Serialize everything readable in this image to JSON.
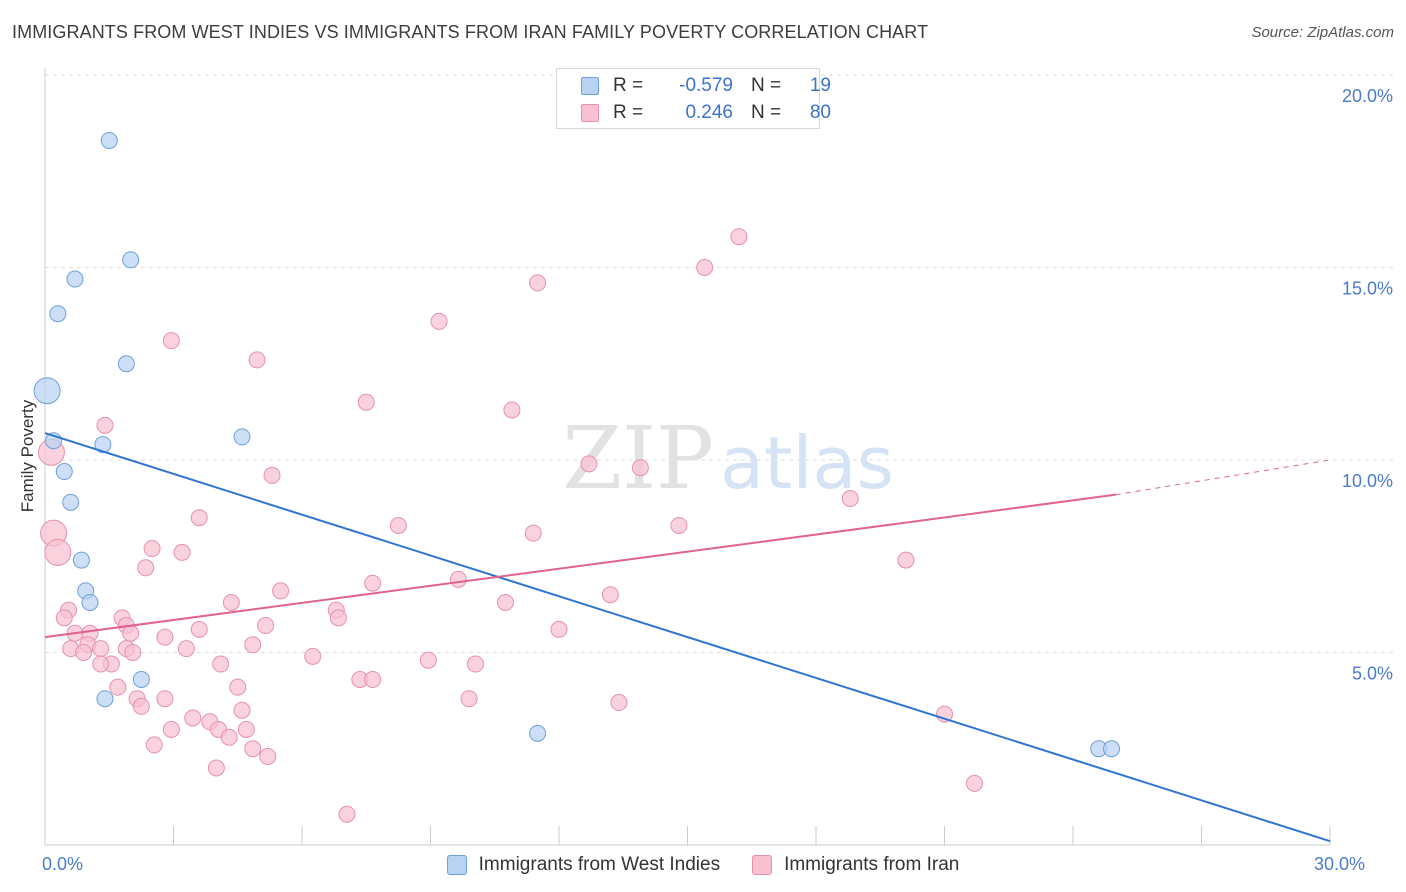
{
  "header": {
    "title": "IMMIGRANTS FROM WEST INDIES VS IMMIGRANTS FROM IRAN FAMILY POVERTY CORRELATION CHART",
    "source": "Source: ZipAtlas.com"
  },
  "watermark": {
    "zip": "ZIP",
    "atlas": "atlas"
  },
  "legend": {
    "rows": [
      {
        "r_label": "R =",
        "r_value": "-0.579",
        "n_label": "N =",
        "n_value": "19"
      },
      {
        "r_label": "R =",
        "r_value": "0.246",
        "n_label": "N =",
        "n_value": "80"
      }
    ]
  },
  "colors": {
    "blue_fill": "#b8d2f2",
    "blue_stroke": "#6f9fdc",
    "blue_line": "#2f74d0",
    "pink_fill": "#f7c1d1",
    "pink_stroke": "#e691ab",
    "pink_line": "#e0628d",
    "grid": "#dedede",
    "tick_text": "#4a7cc9"
  },
  "chart_data": {
    "type": "scatter",
    "ylabel": "Family Poverty",
    "xlim": [
      0,
      30
    ],
    "ylim": [
      0,
      20
    ],
    "x_tick_labels": [
      {
        "value": 0,
        "label": "0.0%"
      },
      {
        "value": 30,
        "label": "30.0%"
      }
    ],
    "y_tick_labels": [
      {
        "value": 5,
        "label": "5.0%"
      },
      {
        "value": 10,
        "label": "10.0%"
      },
      {
        "value": 15,
        "label": "15.0%"
      },
      {
        "value": 20,
        "label": "20.0%"
      }
    ],
    "series": [
      {
        "name": "Immigrants from West Indies",
        "color": "blue",
        "points": [
          [
            1.5,
            18.3
          ],
          [
            2.0,
            15.2
          ],
          [
            0.7,
            14.7
          ],
          [
            0.3,
            13.8
          ],
          [
            1.9,
            12.5
          ],
          [
            0.05,
            11.8,
            "large"
          ],
          [
            0.2,
            10.5
          ],
          [
            1.35,
            10.4
          ],
          [
            4.6,
            10.6
          ],
          [
            0.45,
            9.7
          ],
          [
            0.6,
            8.9
          ],
          [
            0.85,
            7.4
          ],
          [
            0.95,
            6.6
          ],
          [
            1.05,
            6.3
          ],
          [
            2.25,
            4.3
          ],
          [
            1.4,
            3.8
          ],
          [
            11.5,
            2.9
          ],
          [
            24.6,
            2.5
          ],
          [
            24.9,
            2.5
          ]
        ],
        "trend": {
          "x": [
            0,
            30
          ],
          "y": [
            10.7,
            0.1
          ]
        }
      },
      {
        "name": "Immigrants from Iran",
        "color": "pink",
        "points": [
          [
            16.2,
            15.8
          ],
          [
            15.4,
            15.0
          ],
          [
            11.5,
            14.6
          ],
          [
            9.2,
            13.6
          ],
          [
            2.95,
            13.1
          ],
          [
            4.95,
            12.6
          ],
          [
            7.5,
            11.5
          ],
          [
            10.9,
            11.3
          ],
          [
            1.4,
            10.9
          ],
          [
            0.15,
            10.2,
            "large"
          ],
          [
            12.7,
            9.9
          ],
          [
            13.9,
            9.8
          ],
          [
            5.3,
            9.6
          ],
          [
            18.8,
            9.0
          ],
          [
            3.6,
            8.5
          ],
          [
            8.25,
            8.3
          ],
          [
            14.8,
            8.3
          ],
          [
            11.4,
            8.1
          ],
          [
            0.2,
            8.1,
            "large"
          ],
          [
            2.5,
            7.7
          ],
          [
            3.2,
            7.6
          ],
          [
            0.3,
            7.6,
            "large"
          ],
          [
            20.1,
            7.4
          ],
          [
            2.35,
            7.2
          ],
          [
            7.65,
            6.8
          ],
          [
            9.65,
            6.9
          ],
          [
            5.5,
            6.6
          ],
          [
            13.2,
            6.5
          ],
          [
            10.75,
            6.3
          ],
          [
            4.35,
            6.3
          ],
          [
            6.8,
            6.1
          ],
          [
            0.55,
            6.1
          ],
          [
            6.85,
            5.9
          ],
          [
            0.45,
            5.9
          ],
          [
            1.8,
            5.9
          ],
          [
            1.9,
            5.7
          ],
          [
            12.0,
            5.6
          ],
          [
            5.15,
            5.7
          ],
          [
            0.7,
            5.5
          ],
          [
            3.6,
            5.6
          ],
          [
            1.05,
            5.5
          ],
          [
            2.0,
            5.5
          ],
          [
            2.8,
            5.4
          ],
          [
            4.85,
            5.2
          ],
          [
            3.3,
            5.1
          ],
          [
            1.0,
            5.2
          ],
          [
            1.3,
            5.1
          ],
          [
            0.6,
            5.1
          ],
          [
            1.9,
            5.1
          ],
          [
            0.9,
            5.0
          ],
          [
            2.05,
            5.0
          ],
          [
            6.25,
            4.9
          ],
          [
            8.95,
            4.8
          ],
          [
            10.05,
            4.7
          ],
          [
            1.55,
            4.7
          ],
          [
            4.1,
            4.7
          ],
          [
            1.3,
            4.7
          ],
          [
            7.35,
            4.3
          ],
          [
            7.65,
            4.3
          ],
          [
            1.7,
            4.1
          ],
          [
            4.5,
            4.1
          ],
          [
            2.15,
            3.8
          ],
          [
            2.8,
            3.8
          ],
          [
            9.9,
            3.8
          ],
          [
            13.4,
            3.7
          ],
          [
            2.25,
            3.6
          ],
          [
            4.6,
            3.5
          ],
          [
            21.0,
            3.4
          ],
          [
            3.45,
            3.3
          ],
          [
            3.85,
            3.2
          ],
          [
            2.95,
            3.0
          ],
          [
            4.05,
            3.0
          ],
          [
            4.7,
            3.0
          ],
          [
            4.3,
            2.8
          ],
          [
            2.55,
            2.6
          ],
          [
            4.85,
            2.5
          ],
          [
            5.2,
            2.3
          ],
          [
            4.0,
            2.0
          ],
          [
            21.7,
            1.6
          ],
          [
            7.05,
            0.8
          ]
        ],
        "trend": {
          "x": [
            0,
            25
          ],
          "y": [
            5.4,
            9.1
          ]
        },
        "trend_extension": {
          "x": [
            25,
            30
          ],
          "y": [
            9.1,
            10.0
          ]
        }
      }
    ],
    "grid": true,
    "legend_position": "top-center"
  }
}
